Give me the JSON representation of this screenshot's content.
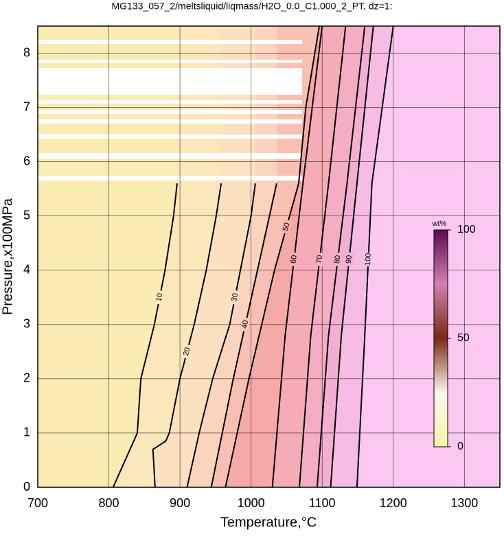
{
  "chart_data": {
    "type": "contour",
    "title": "MG133_057_2/meltsliquid/liqmass/H2O_0.0_C1.000_2_PT, dz=1:",
    "x_label": "Temperature,°C",
    "y_label": "Pressure,x100MPa",
    "xlim": [
      700,
      1350
    ],
    "xticks": [
      700,
      800,
      900,
      1000,
      1100,
      1200,
      1300
    ],
    "ylim": [
      0,
      8.5
    ],
    "yticks": [
      0,
      1,
      2,
      3,
      4,
      5,
      6,
      7,
      8
    ],
    "grid": true,
    "colorbar": {
      "label": "wt%",
      "zlim": [
        0,
        100
      ],
      "ticks": [
        0,
        50,
        100
      ]
    },
    "series": [
      {
        "name": "10",
        "x": [
          806,
          840,
          845,
          864,
          879,
          891,
          896
        ],
        "y": [
          0,
          1,
          2,
          3,
          4,
          5,
          5.6
        ]
      },
      {
        "name": "20",
        "x": [
          865,
          862,
          880,
          885,
          900,
          920,
          937,
          951,
          958
        ],
        "y": [
          0,
          0.7,
          0.85,
          1,
          2,
          3,
          4,
          5,
          5.6
        ]
      },
      {
        "name": "30",
        "x": [
          910,
          927,
          946,
          970,
          985,
          1000,
          1006
        ],
        "y": [
          0,
          1,
          2,
          3,
          4,
          5,
          5.6
        ]
      },
      {
        "name": "40",
        "x": [
          944,
          975,
          1009,
          1036
        ],
        "y": [
          0,
          2,
          4,
          5.6
        ]
      },
      {
        "name": "50",
        "x": [
          964,
          997,
          1033,
          1067,
          1077,
          1096
        ],
        "y": [
          0,
          2,
          4,
          5.6,
          7,
          8.5
        ]
      },
      {
        "name": "60",
        "x": [
          1030,
          1048,
          1073,
          1100
        ],
        "y": [
          0,
          2.8,
          5.6,
          8.5
        ]
      },
      {
        "name": "70",
        "x": [
          1068,
          1084,
          1109,
          1133
        ],
        "y": [
          0,
          2.8,
          5.6,
          8.5
        ]
      },
      {
        "name": "80",
        "x": [
          1093,
          1109,
          1135,
          1160
        ],
        "y": [
          0,
          2.8,
          5.6,
          8.5
        ]
      },
      {
        "name": "90",
        "x": [
          1112,
          1127,
          1149,
          1172
        ],
        "y": [
          0,
          2.8,
          5.6,
          8.5
        ]
      },
      {
        "name": "100",
        "x": [
          1149,
          1160,
          1170,
          1200
        ],
        "y": [
          0,
          2.8,
          5.6,
          8.5
        ]
      }
    ]
  }
}
